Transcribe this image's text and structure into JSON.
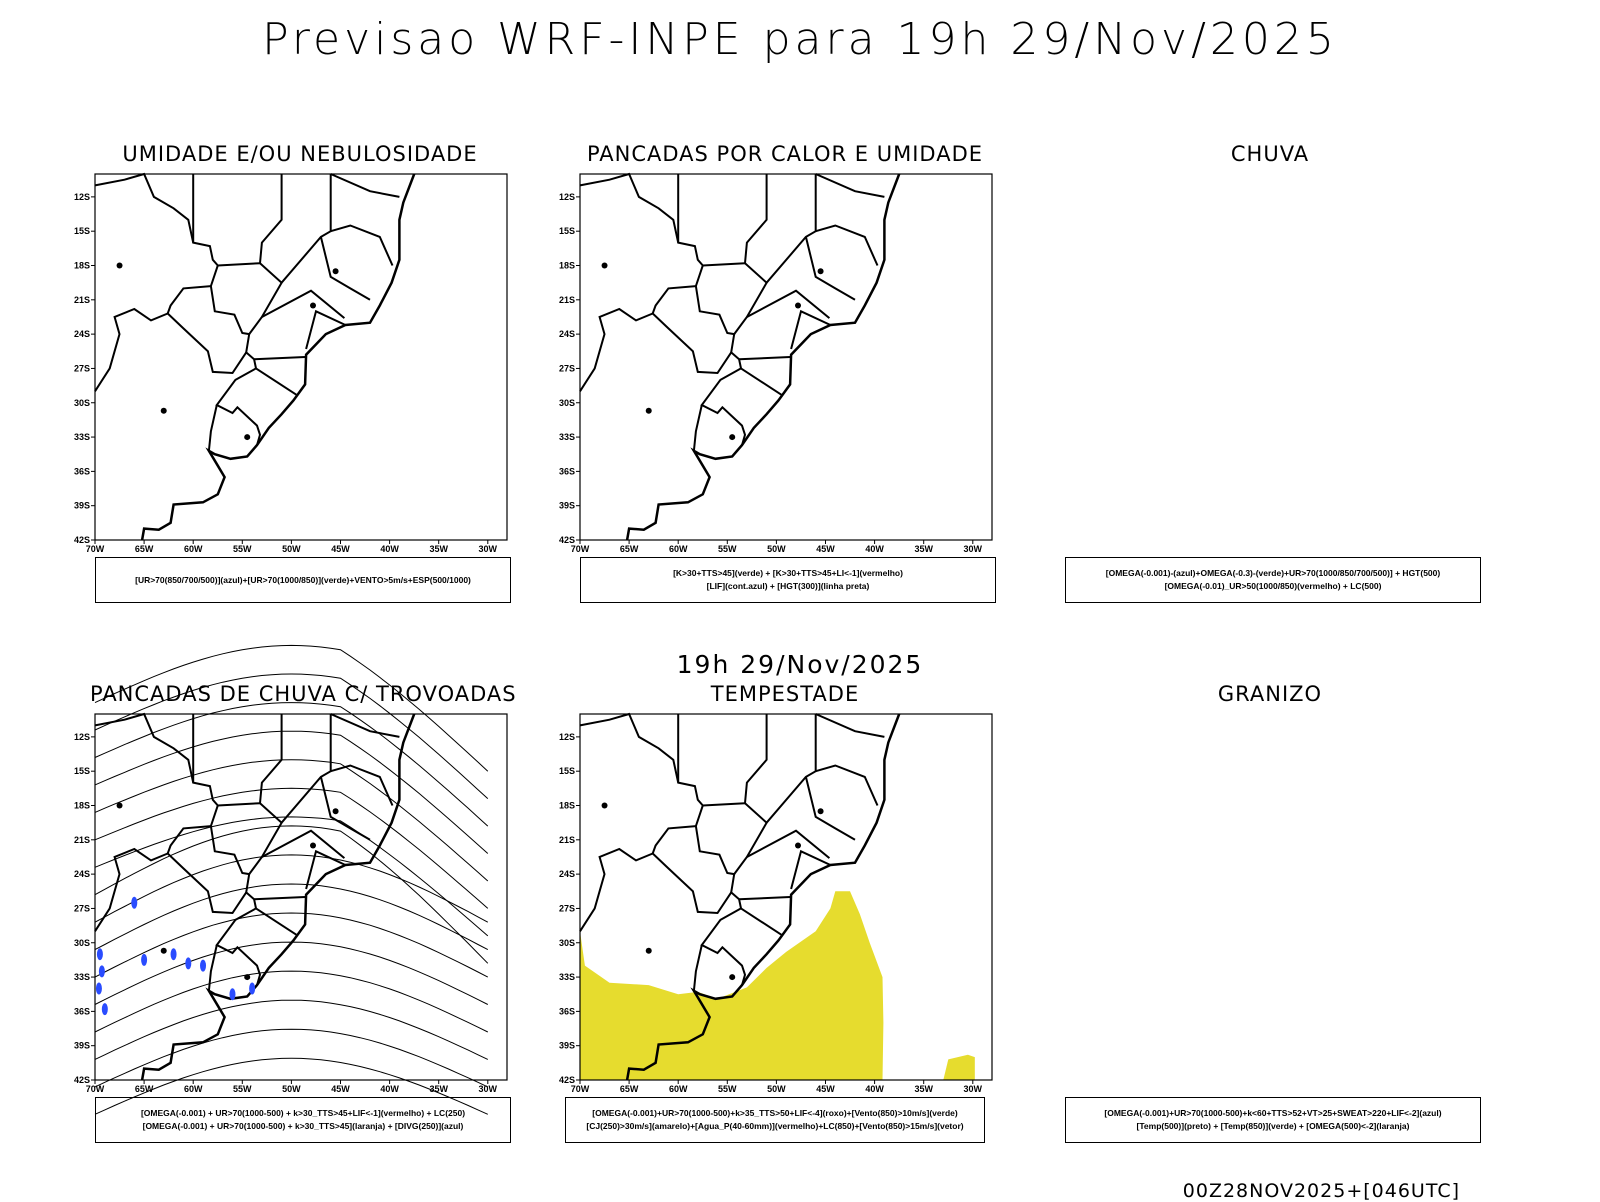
{
  "title": "Previsao WRF-INPE  para 19h 29/Nov/2025",
  "subtitle": "19h 29/Nov/2025",
  "footer": "00Z28NOV2025+[046UTC]",
  "colors": {
    "wet": "#2a4cff",
    "storm": "#e6dc2e"
  },
  "axes": {
    "lat_ticks": [
      "12S",
      "15S",
      "18S",
      "21S",
      "24S",
      "27S",
      "30S",
      "33S",
      "36S",
      "39S",
      "42S"
    ],
    "lon_ticks": [
      "70W",
      "65W",
      "60W",
      "55W",
      "50W",
      "45W",
      "40W",
      "35W",
      "30W"
    ]
  },
  "chart_data": [
    {
      "type": "map",
      "title": "UMIDADE E/OU NEBULOSIDADE",
      "legend": [
        "[UR>70(850/700/500)](azul)+[UR>70(1000/850)](verde)+VENTO>5m/s+ESP(500/1000)"
      ],
      "has_map": true
    },
    {
      "type": "map",
      "title": "PANCADAS POR CALOR E UMIDADE",
      "legend": [
        "[K>30+TTS>45](verde) + [K>30+TTS>45+LI<-1](vermelho)",
        "[LIF](cont.azul) + [HGT(300)](linha preta)"
      ],
      "has_map": true
    },
    {
      "type": "map",
      "title": "CHUVA",
      "legend": [
        "[OMEGA(-0.001)-(azul)+OMEGA(-0.3)-(verde)+UR>70(1000/850/700/500)] + HGT(500)",
        "[OMEGA(-0.01)_UR>50(1000/850)(vermelho) + LC(500)"
      ],
      "has_map": false
    },
    {
      "type": "map",
      "title": "PANCADAS DE CHUVA C/ TROVOADAS",
      "legend": [
        "[OMEGA(-0.001) + UR>70(1000-500) + k>30_TTS>45+LIF<-1](vermelho) + LC(250)",
        "[OMEGA(-0.001) + UR>70(1000-500) + k>30_TTS>45](laranja) + [DIVG(250)](azul)"
      ],
      "has_map": true
    },
    {
      "type": "map",
      "title": "TEMPESTADE",
      "legend": [
        "[OMEGA(-0.001)+UR>70(1000-500)+k>35_TTS>50+LIF<-4](roxo)+[Vento(850)>10m/s](verde)",
        "[CJ(250)>30m/s](amarelo)+[Agua_P(40-60mm)](vermelho)+LC(850)+[Vento(850)>15m/s](vetor)"
      ],
      "has_map": true
    },
    {
      "type": "map",
      "title": "GRANIZO",
      "legend": [
        "[OMEGA(-0.001)+UR>70(1000-500)+k<60+TTS>52+VT>25+SWEAT>220+LIF<-2](azul)",
        "[Temp(500)](preto) + [Temp(850)](verde) + [OMEGA(500)<-2](laranja)"
      ],
      "has_map": false
    }
  ]
}
